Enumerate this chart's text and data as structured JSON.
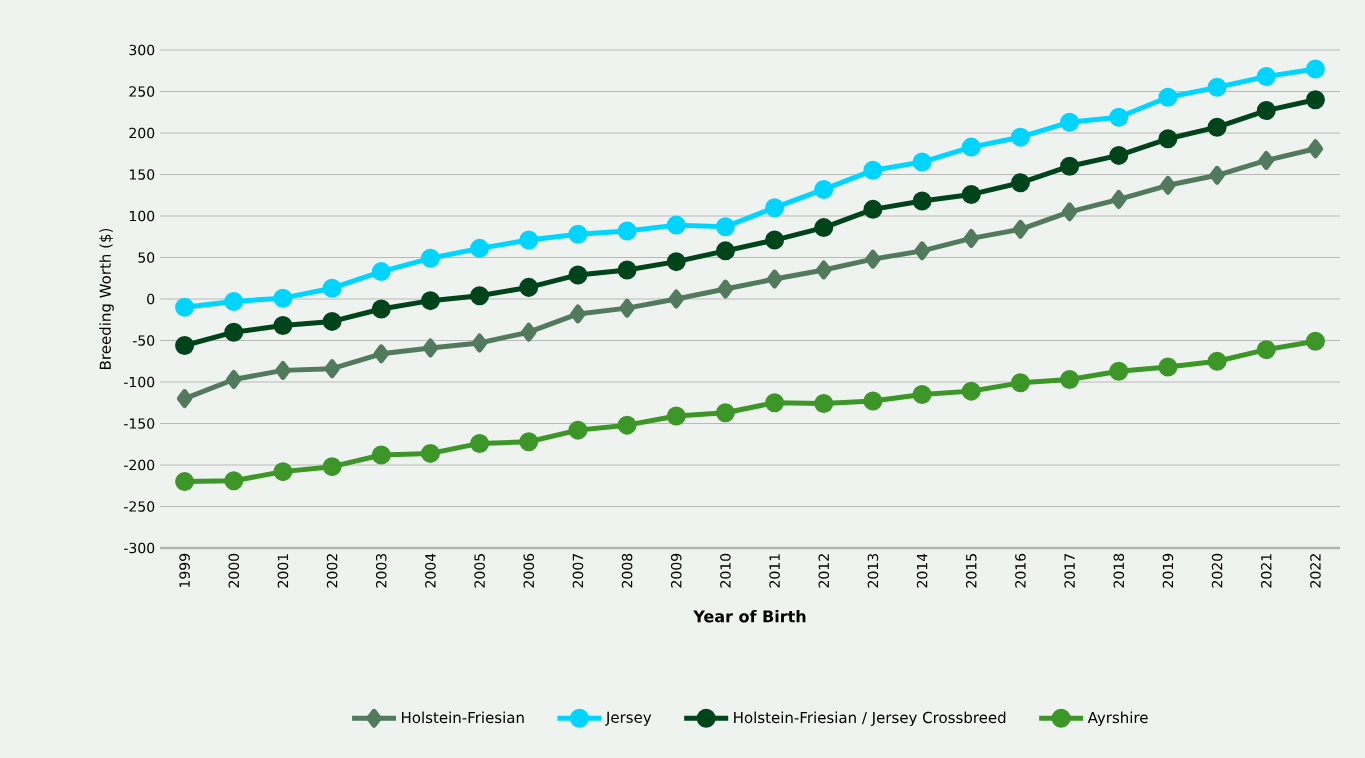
{
  "chart_data": {
    "type": "line",
    "xlabel": "Year of Birth",
    "ylabel": "Breeding Worth ($)",
    "categories": [
      "1999",
      "2000",
      "2001",
      "2002",
      "2003",
      "2004",
      "2005",
      "2006",
      "2007",
      "2008",
      "2009",
      "2010",
      "2011",
      "2012",
      "2013",
      "2014",
      "2015",
      "2016",
      "2017",
      "2018",
      "2019",
      "2020",
      "2021",
      "2022"
    ],
    "ylim": [
      -300,
      300
    ],
    "yticks": [
      -300,
      -250,
      -200,
      -150,
      -100,
      -50,
      0,
      50,
      100,
      150,
      200,
      250,
      300
    ],
    "grid": "y",
    "legend": "bottom",
    "series": [
      {
        "name": "Holstein-Friesian",
        "color": "#527a5c",
        "marker": "diamond",
        "values": [
          -120,
          -97,
          -86,
          -84,
          -66,
          -59,
          -53,
          -40,
          -18,
          -11,
          0,
          12,
          24,
          35,
          48,
          58,
          73,
          84,
          105,
          120,
          137,
          149,
          167,
          181
        ]
      },
      {
        "name": "Jersey",
        "color": "#00d4ff",
        "marker": "circle",
        "values": [
          -10,
          -3,
          1,
          13,
          33,
          49,
          61,
          71,
          78,
          82,
          89,
          87,
          110,
          132,
          155,
          165,
          183,
          195,
          213,
          219,
          243,
          255,
          268,
          277
        ]
      },
      {
        "name": "Holstein-Friesian / Jersey Crossbreed",
        "color": "#00441b",
        "marker": "circle",
        "values": [
          -56,
          -40,
          -32,
          -27,
          -12,
          -2,
          4,
          14,
          29,
          35,
          45,
          58,
          71,
          86,
          108,
          118,
          126,
          140,
          160,
          173,
          193,
          207,
          227,
          240
        ]
      },
      {
        "name": "Ayrshire",
        "color": "#3d9628",
        "marker": "circle",
        "values": [
          -220,
          -219,
          -208,
          -202,
          -188,
          -186,
          -174,
          -172,
          -158,
          -152,
          -141,
          -137,
          -125,
          -126,
          -123,
          -115,
          -111,
          -101,
          -97,
          -87,
          -82,
          -75,
          -61,
          -51
        ]
      }
    ]
  }
}
